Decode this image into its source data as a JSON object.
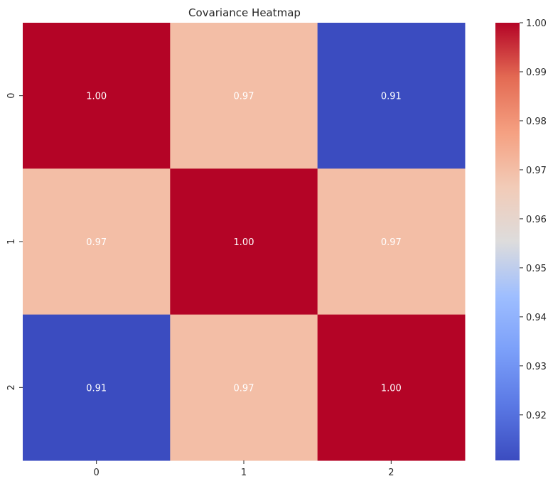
{
  "chart_data": {
    "type": "heatmap",
    "title": "Covariance Heatmap",
    "xlabel": "",
    "ylabel": "",
    "x_categories": [
      "0",
      "1",
      "2"
    ],
    "y_categories": [
      "0",
      "1",
      "2"
    ],
    "values": [
      [
        1.0,
        0.97,
        0.91
      ],
      [
        0.97,
        1.0,
        0.97
      ],
      [
        0.91,
        0.97,
        1.0
      ]
    ],
    "cell_labels": [
      [
        "1.00",
        "0.97",
        "0.91"
      ],
      [
        "0.97",
        "1.00",
        "0.97"
      ],
      [
        "0.91",
        "0.97",
        "1.00"
      ]
    ],
    "colormap": "coolwarm",
    "color_range": [
      0.9107,
      1.0
    ],
    "colorbar_ticks": [
      "0.92",
      "0.93",
      "0.94",
      "0.95",
      "0.96",
      "0.97",
      "0.98",
      "0.99",
      "1.00"
    ],
    "colorbar_tick_values": [
      0.92,
      0.93,
      0.94,
      0.95,
      0.96,
      0.97,
      0.98,
      0.99,
      1.0
    ]
  }
}
